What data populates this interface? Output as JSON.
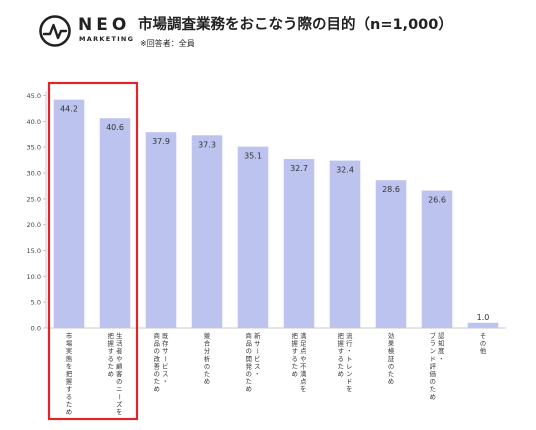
{
  "logo": {
    "word": "NEO",
    "sub": "MARKETING"
  },
  "header": {
    "title": "市場調査業務をおこなう際の目的（n=1,000）",
    "subtitle": "※回答者：全員"
  },
  "chart_data": {
    "type": "bar",
    "title": "市場調査業務をおこなう際の目的（n=1,000）",
    "subtitle": "※回答者：全員",
    "xlabel": "",
    "ylabel": "",
    "ylim": [
      0,
      45
    ],
    "yticks": [
      "0.0",
      "5.0",
      "10.0",
      "15.0",
      "20.0",
      "25.0",
      "30.0",
      "35.0",
      "40.0",
      "45.0"
    ],
    "grid": false,
    "legend": "none",
    "bar_color": "#bcc3ee",
    "highlight_color": "#e0242a",
    "highlighted_categories": [
      0,
      1
    ],
    "categories": [
      "市場実態を把握するため",
      "生活者や顧客のニーズを把握するため",
      "既存サービス・商品の改善のため",
      "競合分析のため",
      "新サービス・商品の開発のため",
      "満足点や不満点を把握するため",
      "流行・トレンドを把握するため",
      "効果検証のため",
      "認知度・ブランド評価のため",
      "その他"
    ],
    "category_lines": [
      [
        "市場実態を把握するため"
      ],
      [
        "生活者や顧客のニーズを",
        "把握するため"
      ],
      [
        "既存サービス・",
        "商品の改善のため"
      ],
      [
        "競合分析のため"
      ],
      [
        "新サービス・",
        "商品の開発のため"
      ],
      [
        "満足点や不満点を",
        "把握するため"
      ],
      [
        "流行・トレンドを",
        "把握するため"
      ],
      [
        "効果検証のため"
      ],
      [
        "認知度・",
        "ブランド評価のため"
      ],
      [
        "その他"
      ]
    ],
    "values": [
      44.2,
      40.6,
      37.9,
      37.3,
      35.1,
      32.7,
      32.4,
      28.6,
      26.6,
      1.0
    ],
    "value_labels": [
      "44.2",
      "40.6",
      "37.9",
      "37.3",
      "35.1",
      "32.7",
      "32.4",
      "28.6",
      "26.6",
      "1.0"
    ]
  }
}
